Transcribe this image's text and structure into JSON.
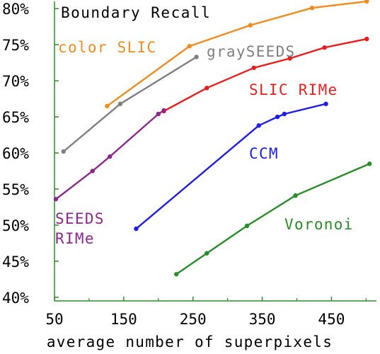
{
  "chart_data": {
    "type": "line",
    "title": "Boundary Recall",
    "xlabel": "average number of superpixels",
    "ylabel": "",
    "xlim": [
      50,
      515
    ],
    "ylim": [
      39.5,
      81
    ],
    "x_ticks": [
      50,
      150,
      250,
      350,
      450
    ],
    "x_tick_labels": [
      "50",
      "150",
      "250",
      "350",
      "450"
    ],
    "x_minor_ticks": [
      100,
      200,
      300,
      400,
      500
    ],
    "y_ticks": [
      40,
      45,
      50,
      55,
      60,
      65,
      70,
      75,
      80
    ],
    "y_tick_labels": [
      "40%",
      "45%",
      "50%",
      "55%",
      "60%",
      "65%",
      "70%",
      "75%",
      "80%"
    ],
    "grid": false,
    "series": [
      {
        "name": "color SLIC",
        "color": "#f08c1e",
        "label_lines": [
          "color SLIC"
        ],
        "points": [
          [
            126,
            66.5
          ],
          [
            245,
            74.8
          ],
          [
            333,
            77.7
          ],
          [
            422,
            80.1
          ],
          [
            501,
            81
          ]
        ]
      },
      {
        "name": "graySEEDS",
        "color": "#808080",
        "label_lines": [
          "graySEEDS"
        ],
        "points": [
          [
            63,
            60.2
          ],
          [
            145,
            66.8
          ],
          [
            255,
            73.3
          ]
        ]
      },
      {
        "name": "SLIC RIMe",
        "color": "#e61e1e",
        "label_lines": [
          "SLIC RIMe"
        ],
        "points": [
          [
            208,
            65.8
          ],
          [
            270,
            69.0
          ],
          [
            338,
            71.8
          ],
          [
            390,
            73.1
          ],
          [
            440,
            74.6
          ],
          [
            501,
            75.8
          ]
        ]
      },
      {
        "name": "SEEDS RIMe",
        "color": "#8c288c",
        "label_lines": [
          "SEEDS",
          "RIMe"
        ],
        "points": [
          [
            52,
            53.6
          ],
          [
            105,
            57.5
          ],
          [
            130,
            59.5
          ],
          [
            200,
            65.4
          ],
          [
            208,
            65.9
          ]
        ]
      },
      {
        "name": "CCM",
        "color": "#1e1ee6",
        "label_lines": [
          "CCM"
        ],
        "points": [
          [
            168,
            49.5
          ],
          [
            345,
            63.8
          ],
          [
            372,
            65.0
          ],
          [
            382,
            65.4
          ],
          [
            442,
            66.8
          ]
        ]
      },
      {
        "name": "Voronoi",
        "color": "#288c28",
        "label_lines": [
          "Voronoi"
        ],
        "points": [
          [
            226,
            43.2
          ],
          [
            270,
            46.1
          ],
          [
            328,
            49.9
          ],
          [
            398,
            54.1
          ],
          [
            505,
            58.5
          ]
        ]
      }
    ]
  }
}
